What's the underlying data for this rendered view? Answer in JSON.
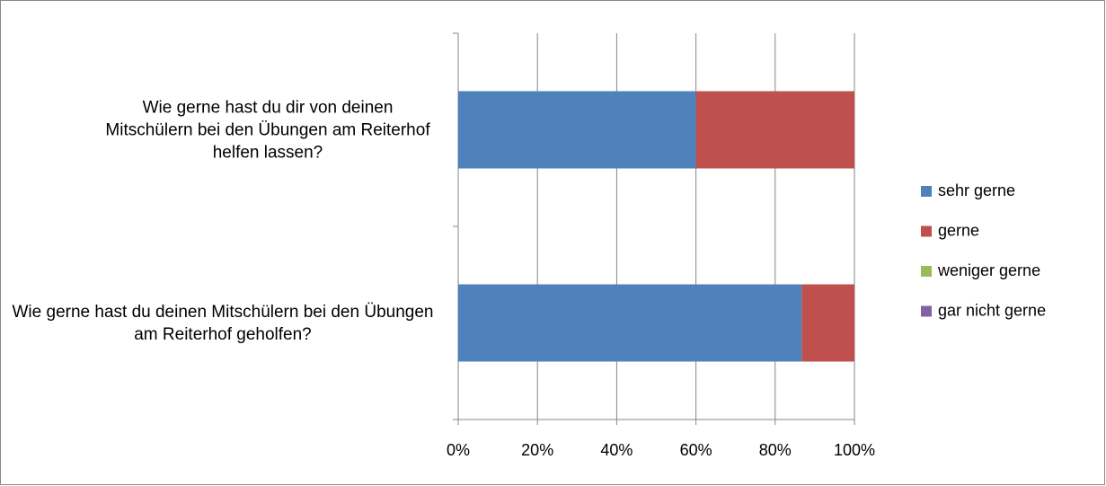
{
  "chart_data": {
    "type": "stacked-bar-horizontal",
    "categories": [
      "Wie gerne hast du dir von deinen Mitschülern bei den Übungen am Reiterhof helfen lassen?",
      "Wie gerne hast du deinen Mitschülern bei den Übungen am Reiterhof geholfen?"
    ],
    "series": [
      {
        "name": "sehr gerne",
        "color": "#4f81bd",
        "values": [
          60,
          86.7
        ]
      },
      {
        "name": "gerne",
        "color": "#c0504d",
        "values": [
          40,
          13.3
        ]
      },
      {
        "name": "weniger gerne",
        "color": "#9bbb59",
        "values": [
          0,
          0
        ]
      },
      {
        "name": "gar nicht gerne",
        "color": "#8064a2",
        "values": [
          0,
          0
        ]
      }
    ],
    "xlim": [
      0,
      100
    ],
    "xticks": [
      {
        "value": 0,
        "label": "0%"
      },
      {
        "value": 20,
        "label": "20%"
      },
      {
        "value": 40,
        "label": "40%"
      },
      {
        "value": 60,
        "label": "60%"
      },
      {
        "value": 80,
        "label": "80%"
      },
      {
        "value": 100,
        "label": "100%"
      }
    ],
    "grid": true,
    "legend": "right"
  }
}
